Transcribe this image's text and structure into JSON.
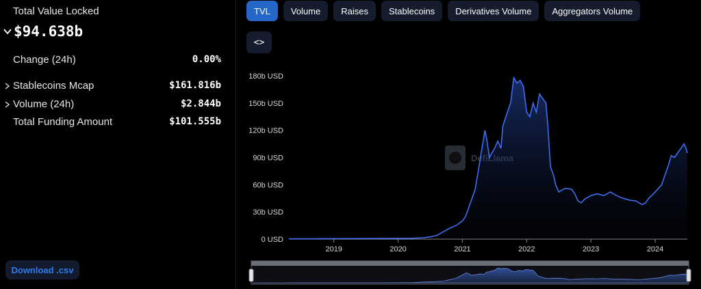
{
  "summary": {
    "tvl_label": "Total Value Locked",
    "tvl_value": "$94.638b",
    "change_label": "Change (24h)",
    "change_value": "0.00%",
    "stablecoins_label": "Stablecoins Mcap",
    "stablecoins_value": "$161.816b",
    "volume_label": "Volume (24h)",
    "volume_value": "$2.844b",
    "funding_label": "Total Funding Amount",
    "funding_value": "$101.555b",
    "download_label": "Download .csv"
  },
  "tabs": [
    "TVL",
    "Volume",
    "Raises",
    "Stablecoins",
    "Derivatives Volume",
    "Aggregators Volume"
  ],
  "active_tab": "TVL",
  "embed_label": "<>",
  "watermark_text": "DefiLlama",
  "colors": {
    "line": "#3f6ff0",
    "active_tab": "#2566c9",
    "download_text": "#2f7bec"
  },
  "chart_data": {
    "type": "area",
    "title": "",
    "xlabel": "",
    "ylabel": "",
    "x_ticks": [
      "2019",
      "2020",
      "2021",
      "2022",
      "2023",
      "2024"
    ],
    "y_ticks": [
      "0 USD",
      "30b USD",
      "60b USD",
      "90b USD",
      "120b USD",
      "150b USD",
      "180b USD"
    ],
    "xlim": [
      2018.3,
      2024.5
    ],
    "ylim": [
      0,
      180
    ],
    "grid": false,
    "series": [
      {
        "x": [
          2018.3,
          2018.6,
          2019.0,
          2019.4,
          2019.8,
          2020.0,
          2020.2,
          2020.4,
          2020.5,
          2020.6,
          2020.7,
          2020.8,
          2020.9,
          2021.0,
          2021.05,
          2021.1,
          2021.15,
          2021.2,
          2021.27,
          2021.35,
          2021.38,
          2021.42,
          2021.5,
          2021.55,
          2021.6,
          2021.63,
          2021.7,
          2021.75,
          2021.8,
          2021.85,
          2021.9,
          2021.95,
          2022.0,
          2022.05,
          2022.1,
          2022.15,
          2022.2,
          2022.25,
          2022.3,
          2022.33,
          2022.37,
          2022.42,
          2022.45,
          2022.5,
          2022.6,
          2022.7,
          2022.75,
          2022.8,
          2022.85,
          2022.9,
          2023.0,
          2023.1,
          2023.2,
          2023.3,
          2023.4,
          2023.5,
          2023.6,
          2023.7,
          2023.75,
          2023.8,
          2023.85,
          2023.9,
          2024.0,
          2024.1,
          2024.15,
          2024.2,
          2024.25,
          2024.3,
          2024.35,
          2024.4,
          2024.45,
          2024.48,
          2024.5
        ],
        "values": [
          0.3,
          0.4,
          0.5,
          0.6,
          0.7,
          0.8,
          0.9,
          1.5,
          2.5,
          4,
          8,
          12,
          15,
          20,
          25,
          35,
          45,
          55,
          85,
          120,
          110,
          90,
          100,
          108,
          100,
          125,
          140,
          150,
          178,
          172,
          175,
          168,
          140,
          135,
          150,
          140,
          160,
          155,
          150,
          125,
          80,
          70,
          60,
          52,
          56,
          55,
          50,
          42,
          40,
          44,
          48,
          50,
          48,
          52,
          48,
          45,
          43,
          42,
          40,
          38,
          40,
          45,
          52,
          60,
          70,
          80,
          92,
          90,
          95,
          100,
          105,
          100,
          95
        ]
      }
    ]
  }
}
